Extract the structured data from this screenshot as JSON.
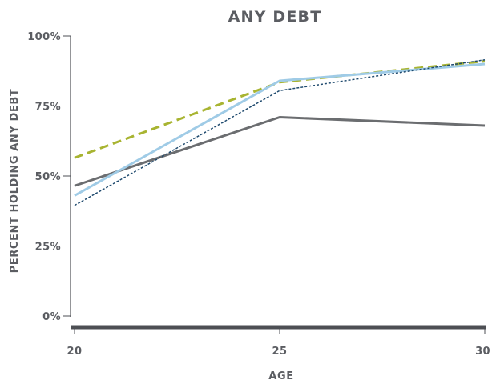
{
  "chart_data": {
    "type": "line",
    "title": "ANY DEBT",
    "xlabel": "AGE",
    "ylabel": "PERCENT HOLDING ANY DEBT",
    "x": [
      20,
      25,
      30
    ],
    "xlim": [
      20,
      30
    ],
    "ylim": [
      0,
      100
    ],
    "x_ticks": [
      "20",
      "25",
      "30"
    ],
    "y_ticks": [
      "0%",
      "25%",
      "50%",
      "75%",
      "100%"
    ],
    "grid": false,
    "legend": "none",
    "series": [
      {
        "color": "#6b6d70",
        "style": "solid",
        "values": [
          46.5,
          71.0,
          68.0
        ]
      },
      {
        "color": "#a8b431",
        "style": "dashed",
        "values": [
          56.5,
          83.5,
          91.0
        ]
      },
      {
        "color": "#9fcbe6",
        "style": "solid",
        "values": [
          43.0,
          84.0,
          90.0
        ]
      },
      {
        "color": "#1f4a6e",
        "style": "dotted",
        "values": [
          39.5,
          80.5,
          91.5
        ]
      }
    ]
  }
}
